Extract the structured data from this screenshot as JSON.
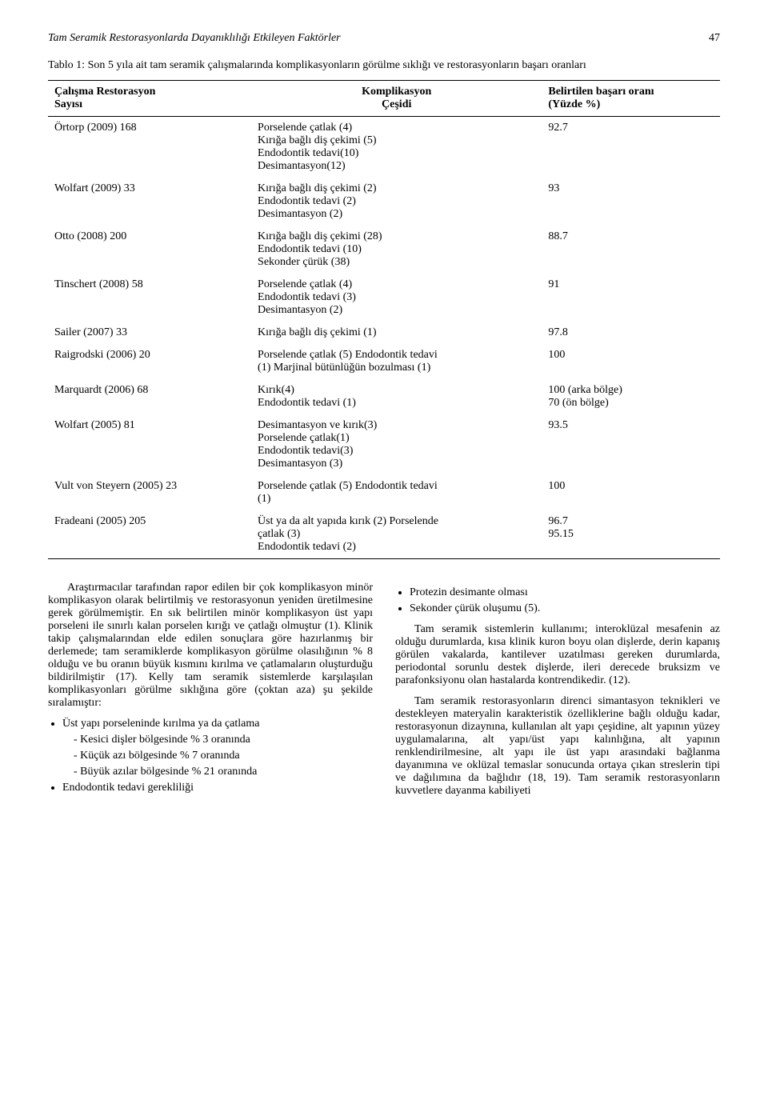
{
  "header": {
    "running_title": "Tam Seramik Restorasyonlarda Dayanıklılığı Etkileyen Faktörler",
    "page_number": "47"
  },
  "table": {
    "caption": "Tablo 1: Son 5 yıla ait tam seramik çalışmalarında komplikasyonların görülme sıklığı ve restorasyonların başarı oranları",
    "columns": [
      "Çalışma Restorasyon\nSayısı",
      "Komplikasyon\nÇeşidi",
      "Belirtilen başarı oranı\n(Yüzde %)"
    ],
    "rows": [
      {
        "c0": "Örtorp (2009) 168",
        "c1": "Porselende çatlak (4)\nKırığa bağlı diş çekimi (5)\nEndodontik tedavi(10)\nDesimantasyon(12)",
        "c2": "92.7"
      },
      {
        "c0": "Wolfart (2009) 33",
        "c1": "Kırığa bağlı diş çekimi (2)\nEndodontik tedavi (2)\nDesimantasyon (2)",
        "c2": "93"
      },
      {
        "c0": "Otto (2008) 200",
        "c1": "Kırığa bağlı diş çekimi (28)\nEndodontik tedavi (10)\nSekonder çürük (38)",
        "c2": "88.7"
      },
      {
        "c0": "Tinschert (2008) 58",
        "c1": "Porselende çatlak (4)\nEndodontik tedavi (3)\nDesimantasyon (2)",
        "c2": "91"
      },
      {
        "c0": "Sailer (2007) 33",
        "c1": "Kırığa bağlı diş çekimi (1)",
        "c2": "97.8"
      },
      {
        "c0": "Raigrodski (2006) 20",
        "c1": "Porselende çatlak (5) Endodontik tedavi\n(1) Marjinal bütünlüğün bozulması (1)",
        "c2": "100"
      },
      {
        "c0": "Marquardt (2006) 68",
        "c1": "Kırık(4)\nEndodontik tedavi (1)",
        "c2": "100 (arka bölge)\n70 (ön bölge)"
      },
      {
        "c0": "Wolfart (2005) 81",
        "c1": "Desimantasyon ve kırık(3)\nPorselende çatlak(1)\nEndodontik tedavi(3)\nDesimantasyon (3)",
        "c2": "93.5"
      },
      {
        "c0": "Vult von Steyern (2005) 23",
        "c1": "Porselende çatlak (5) Endodontik tedavi\n(1)",
        "c2": "100"
      },
      {
        "c0": "Fradeani (2005) 205",
        "c1": "Üst ya da alt yapıda kırık (2) Porselende\nçatlak (3)\nEndodontik tedavi (2)",
        "c2": "96.7\n95.15"
      }
    ]
  },
  "body": {
    "left": {
      "p1": "Araştırmacılar tarafından rapor edilen bir çok komplikasyon minör komplikasyon olarak belirtilmiş ve restorasyonun yeniden üretilmesine gerek görülmemiştir. En sık belirtilen minör komplikasyon üst yapı porseleni ile sınırlı kalan porselen kırığı ve çatlağı olmuştur (1). Klinik takip çalışmalarından elde edilen sonuçlara göre hazırlanmış bir derlemede; tam seramiklerde komplikasyon görülme olasılığının % 8 olduğu ve bu oranın büyük kısmını kırılma ve çatlamaların oluşturduğu bildirilmiştir (17). Kelly tam seramik sistemlerde karşılaşılan komplikasyonları görülme sıklığına göre (çoktan aza) şu şekilde sıralamıştır:",
      "b1": "Üst yapı porseleninde kırılma ya da çatlama",
      "b1a": "Kesici dişler bölgesinde % 3 oranında",
      "b1b": "Küçük azı bölgesinde % 7 oranında",
      "b1c": "Büyük azılar bölgesinde % 21 oranında",
      "b2": "Endodontik tedavi gerekliliği"
    },
    "right": {
      "b3": "Protezin desimante olması",
      "b4": "Sekonder çürük oluşumu (5).",
      "p2": "Tam seramik sistemlerin kullanımı; interoklüzal mesafenin az olduğu durumlarda, kısa klinik kuron boyu olan dişlerde, derin kapanış görülen vakalarda, kantilever uzatılması gereken durumlarda, periodontal sorunlu destek dişlerde, ileri derecede bruksizm ve parafonksiyonu olan hastalarda kontrendikedir. (12).",
      "p3": "Tam seramik restorasyonların direnci simantasyon teknikleri ve destekleyen materyalin karakteristik özelliklerine bağlı olduğu kadar, restorasyonun dizaynına, kullanılan alt yapı çeşidine, alt yapının yüzey uygulamalarına, alt yapı/üst yapı kalınlığına, alt yapının renklendirilmesine, alt yapı ile üst yapı arasındaki bağlanma dayanımına ve oklüzal temaslar sonucunda ortaya çıkan streslerin tipi ve dağılımına da bağlıdır (18, 19). Tam seramik restorasyonların kuvvetlere dayanma kabiliyeti"
    }
  }
}
